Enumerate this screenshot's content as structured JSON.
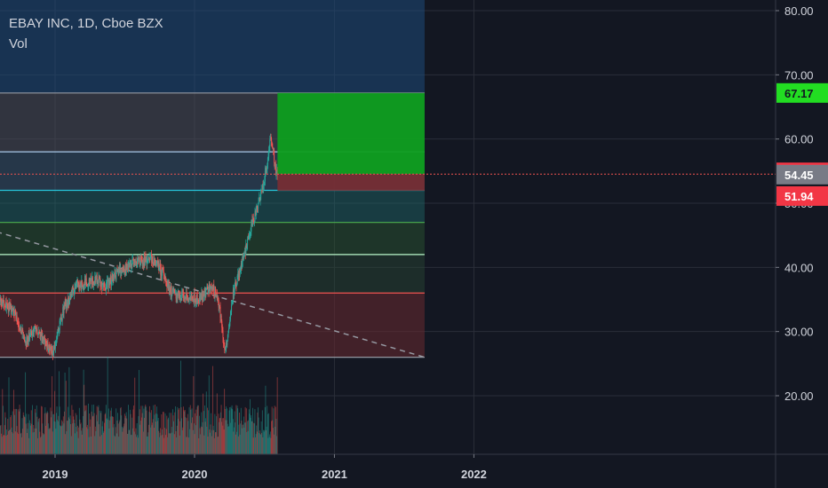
{
  "legend": {
    "symbol_line": "EBAY INC, 1D, Cboe BZX",
    "indicator": "Vol"
  },
  "price_tags": {
    "target": "67.17",
    "last": "54.53",
    "current": "54.45",
    "stop": "51.94"
  },
  "colors": {
    "background": "#131722",
    "grid": "#2a2e39",
    "up": "#26a69a",
    "down": "#ef5350",
    "target_zone": "#0e9e1f",
    "stop_zone": "#7a2d33",
    "target_tag": "#22dd22",
    "stop_tag": "#f23645",
    "current_tag": "#787b86"
  },
  "chart_data": {
    "type": "candlestick",
    "title": "EBAY INC, 1D, Cboe BZX",
    "y_axis": {
      "ticks": [
        "80.00",
        "70.00",
        "60.00",
        "50.00",
        "40.00",
        "30.00",
        "20.00"
      ],
      "tick_values": [
        80,
        70,
        60,
        50,
        40,
        30,
        20
      ],
      "range": [
        15.6,
        81.6
      ]
    },
    "x_axis": {
      "ticks": [
        "2019",
        "2020",
        "2021",
        "2022"
      ],
      "range": [
        "2018-08",
        "2023-06"
      ]
    },
    "price_path": [
      [
        "2018-08-01",
        35.0
      ],
      [
        "2018-09-15",
        33.0
      ],
      [
        "2018-10-15",
        28.5
      ],
      [
        "2018-11-10",
        30.5
      ],
      [
        "2018-12-10",
        28.0
      ],
      [
        "2018-12-26",
        27.0
      ],
      [
        "2019-01-20",
        33.0
      ],
      [
        "2019-02-20",
        37.0
      ],
      [
        "2019-03-20",
        37.5
      ],
      [
        "2019-04-20",
        38.0
      ],
      [
        "2019-05-10",
        37.0
      ],
      [
        "2019-06-10",
        39.0
      ],
      [
        "2019-07-20",
        40.5
      ],
      [
        "2019-08-20",
        41.0
      ],
      [
        "2019-09-10",
        41.5
      ],
      [
        "2019-10-10",
        39.0
      ],
      [
        "2019-11-01",
        36.0
      ],
      [
        "2019-12-01",
        35.5
      ],
      [
        "2020-01-10",
        35.0
      ],
      [
        "2020-02-10",
        37.0
      ],
      [
        "2020-02-25",
        36.0
      ],
      [
        "2020-03-10",
        32.0
      ],
      [
        "2020-03-18",
        27.0
      ],
      [
        "2020-03-25",
        29.0
      ],
      [
        "2020-04-10",
        36.0
      ],
      [
        "2020-04-25",
        39.0
      ],
      [
        "2020-05-10",
        42.0
      ],
      [
        "2020-05-25",
        46.0
      ],
      [
        "2020-06-05",
        48.0
      ],
      [
        "2020-06-20",
        51.0
      ],
      [
        "2020-07-05",
        55.0
      ],
      [
        "2020-07-15",
        60.0
      ],
      [
        "2020-07-22",
        59.0
      ],
      [
        "2020-07-30",
        55.0
      ],
      [
        "2020-08-05",
        54.45
      ]
    ],
    "volume_bars": 520,
    "fib_levels": [
      67.17,
      58.0,
      52.0,
      47.0,
      42.0,
      36.0,
      26.0
    ],
    "zones": [
      {
        "name": "target",
        "price_from": 54.53,
        "price_to": 67.17,
        "date_from": "2020-08-05",
        "date_to": "2021-08-25"
      },
      {
        "name": "stop",
        "price_from": 51.94,
        "price_to": 54.53,
        "date_from": "2020-08-05",
        "date_to": "2021-08-25"
      }
    ],
    "trendline": {
      "from": [
        "2018-08-01",
        49.0
      ],
      "to": [
        "2021-08-25",
        26.0
      ]
    },
    "last_price": 54.53,
    "current_price": 54.45,
    "target_price": 67.17,
    "stop_price": 51.94
  }
}
